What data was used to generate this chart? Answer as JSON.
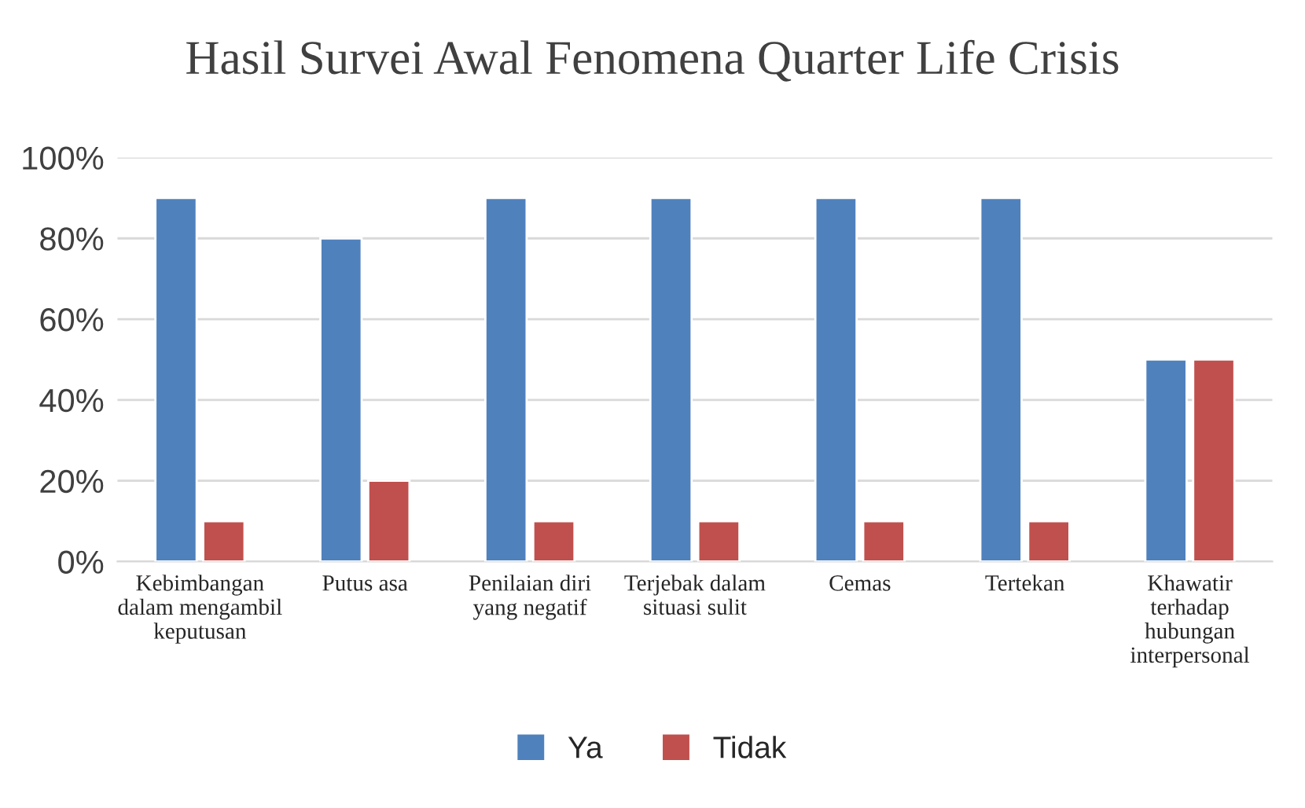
{
  "chart_data": {
    "type": "bar",
    "title": "Hasil Survei Awal Fenomena Quarter Life Crisis",
    "categories": [
      "Kebimbangan dalam mengambil keputusan",
      "Putus asa",
      "Penilaian diri yang negatif",
      "Terjebak dalam situasi sulit",
      "Cemas",
      "Tertekan",
      "Khawatir terhadap hubungan interpersonal"
    ],
    "series": [
      {
        "name": "Ya",
        "color": "#4f81bd",
        "values": [
          90,
          80,
          90,
          90,
          90,
          90,
          50
        ]
      },
      {
        "name": "Tidak",
        "color": "#c0504d",
        "values": [
          10,
          20,
          10,
          10,
          10,
          10,
          50
        ]
      }
    ],
    "ylim": [
      0,
      100
    ],
    "yticks": [
      {
        "value": 0,
        "label": "0%"
      },
      {
        "value": 20,
        "label": "20%"
      },
      {
        "value": 40,
        "label": "40%"
      },
      {
        "value": 60,
        "label": "60%"
      },
      {
        "value": 80,
        "label": "80%"
      },
      {
        "value": 100,
        "label": "100%"
      }
    ],
    "grid": "y",
    "legend": "bottom"
  }
}
